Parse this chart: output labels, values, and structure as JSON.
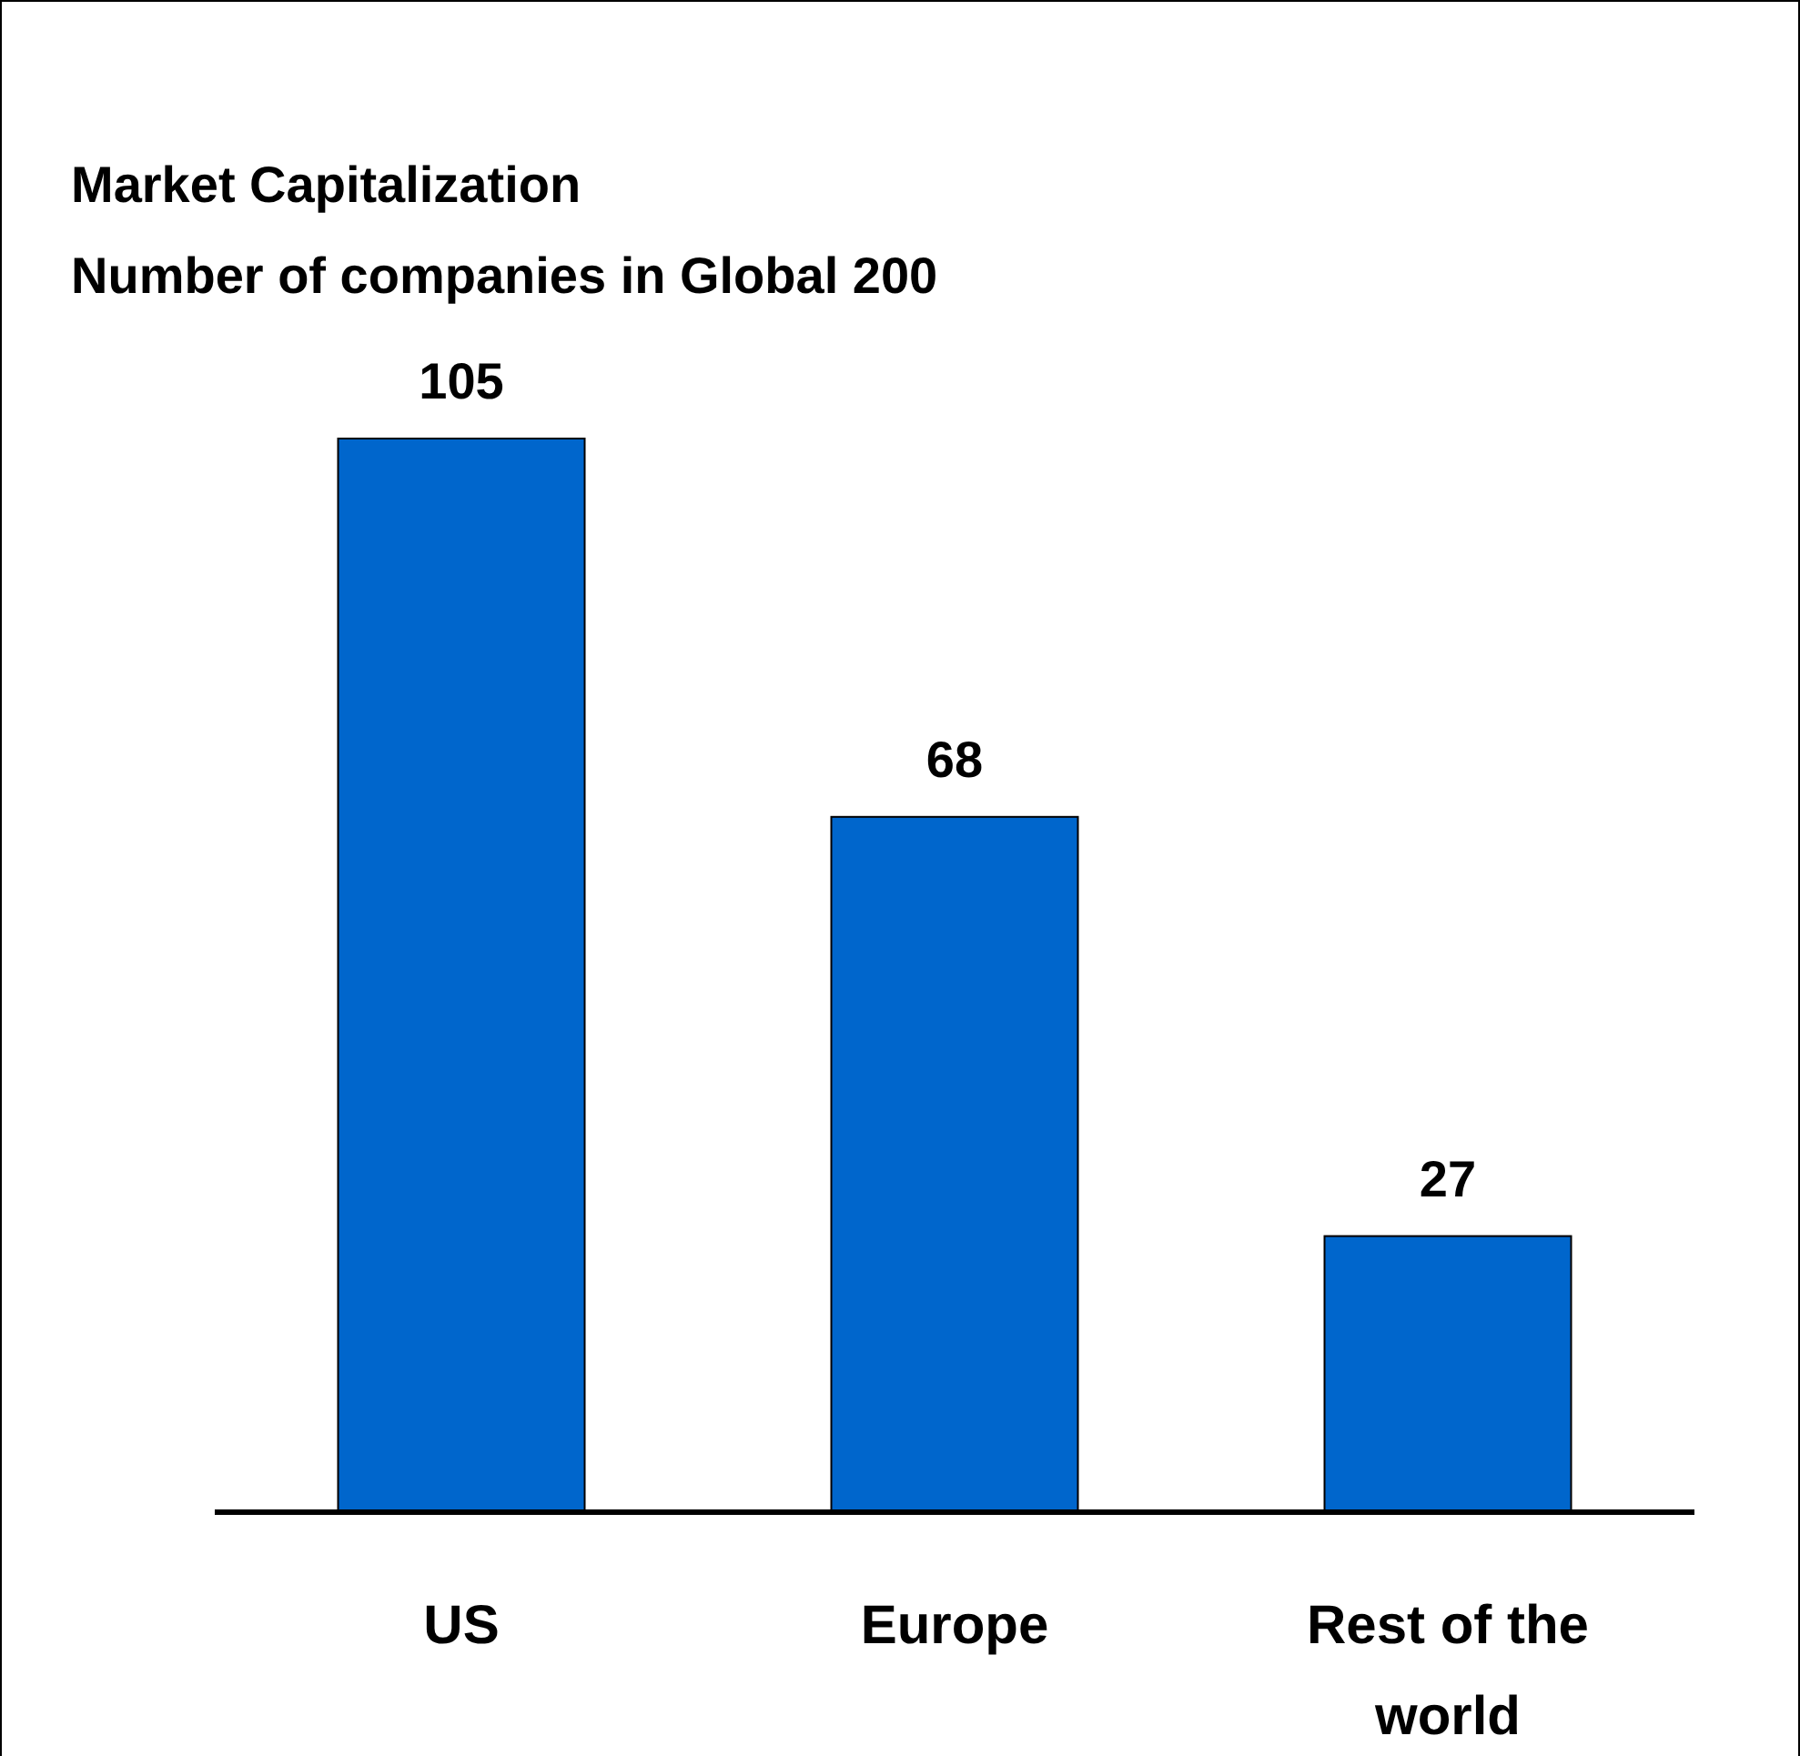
{
  "chart_data": {
    "type": "bar",
    "title": "Market Capitalization\nNumber of companies in Global 200",
    "categories": [
      "US",
      "Europe",
      "Rest of the world"
    ],
    "values": [
      105,
      68,
      27
    ],
    "color": "#0066cc",
    "data_labels": true
  }
}
